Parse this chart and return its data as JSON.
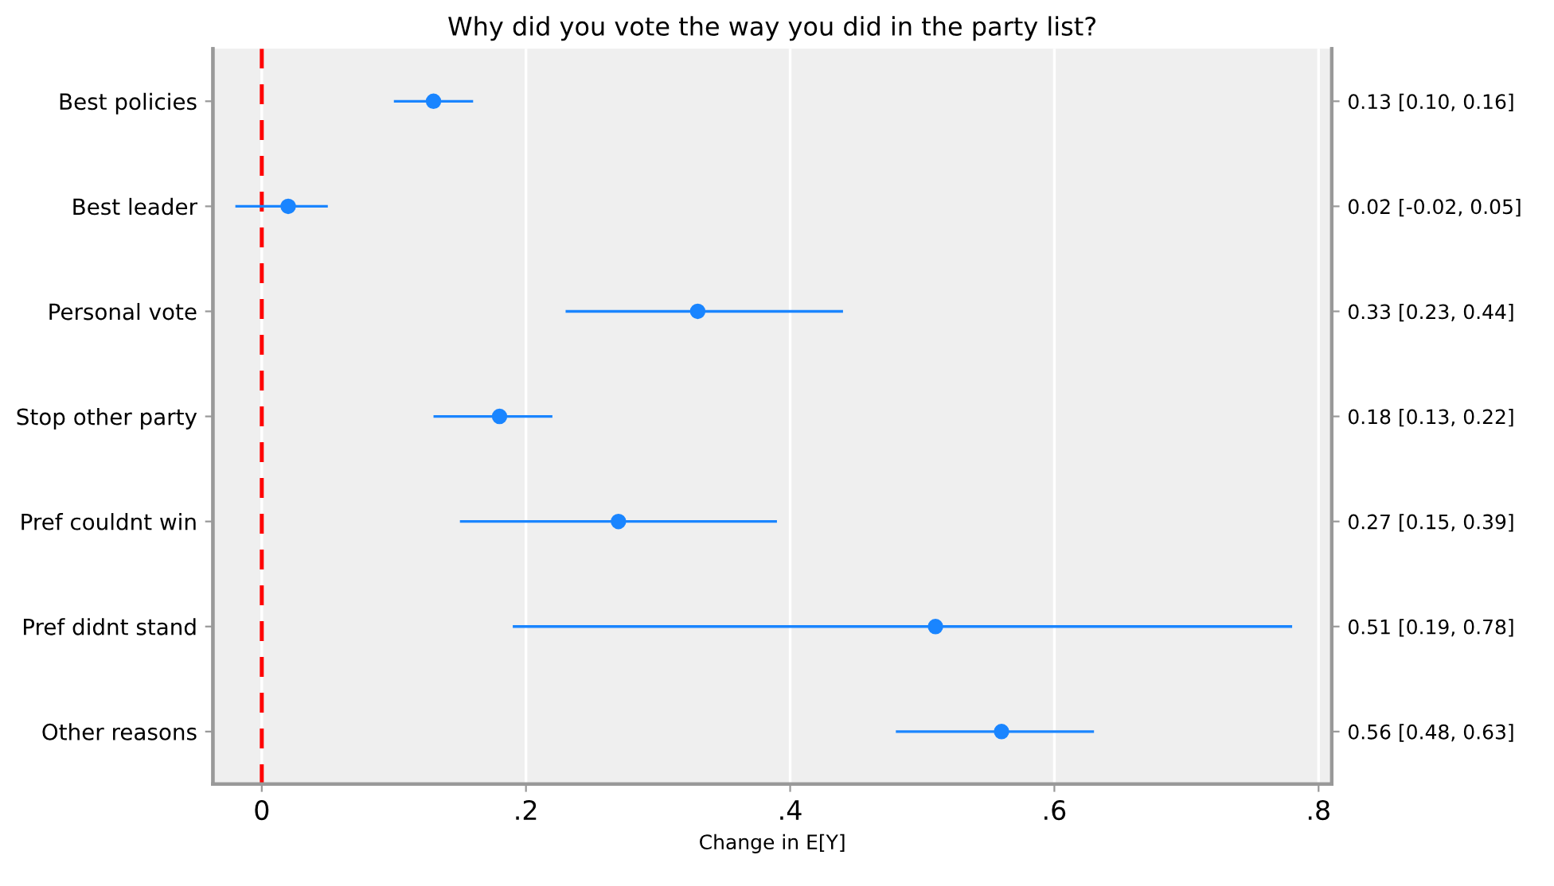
{
  "chart_data": {
    "type": "scatter",
    "orientation": "horizontal",
    "title": "Why did you vote the way you did in the party list?",
    "xlabel": "Change in E[Y]",
    "categories": [
      "Best policies",
      "Best leader",
      "Personal vote",
      "Stop other party",
      "Pref couldnt win",
      "Pref didnt stand",
      "Other reasons"
    ],
    "series": [
      {
        "color": "#1a85ff",
        "values": [
          0.13,
          0.02,
          0.33,
          0.18,
          0.27,
          0.51,
          0.56
        ],
        "errors": [
          [
            0.1,
            0.16
          ],
          [
            -0.02,
            0.05
          ],
          [
            0.23,
            0.44
          ],
          [
            0.13,
            0.22
          ],
          [
            0.15,
            0.39
          ],
          [
            0.19,
            0.78
          ],
          [
            0.48,
            0.63
          ]
        ],
        "value_labels": [
          "0.13 [0.10, 0.16]",
          "0.02 [-0.02, 0.05]",
          "0.33 [0.23, 0.44]",
          "0.18 [0.13, 0.22]",
          "0.27 [0.15, 0.39]",
          "0.51 [0.19, 0.78]",
          "0.56 [0.48, 0.63]"
        ]
      }
    ],
    "xlim": [
      -0.037,
      0.81
    ],
    "xticks": [
      0,
      {
        "value": 0.2,
        "label": ".2"
      },
      {
        "value": 0.4,
        "label": ".4"
      },
      {
        "value": 0.6,
        "label": ".6"
      },
      {
        "value": 0.8,
        "label": ".8"
      }
    ],
    "grid": "x",
    "marker": "circle",
    "ref_lines": [
      {
        "axis": "x",
        "value": 0,
        "color": "#ff0000",
        "line_style": "dashed"
      }
    ]
  }
}
